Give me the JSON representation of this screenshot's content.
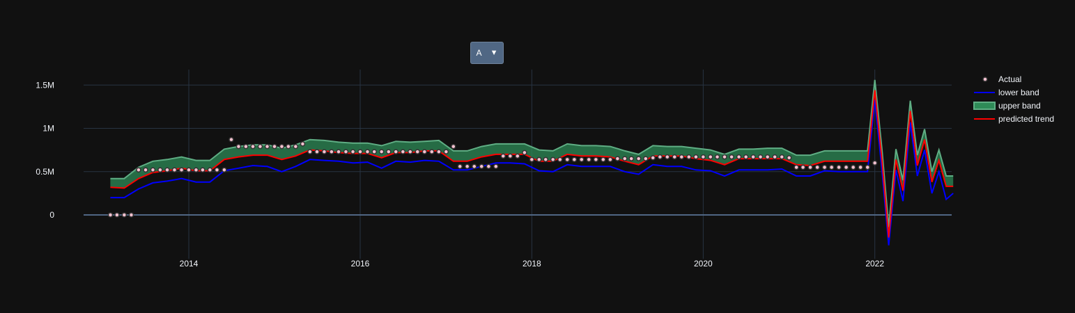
{
  "dropdown": {
    "selected": "A",
    "arrow": "▼"
  },
  "colors": {
    "background": "#111111",
    "grid": "#283442",
    "zeroline": "#506784",
    "lower": "#0000ff",
    "upper_line": "#5fae84",
    "upper_fill": "#2e8b57",
    "trend": "#ff0000",
    "actual_fill": "#f4c2d0",
    "actual_edge": "#333333"
  },
  "chart_data": {
    "type": "line",
    "y_ticks": [
      "0",
      "0.5M",
      "1M",
      "1.5M"
    ],
    "y_tick_values": [
      0,
      500000,
      1000000,
      1500000
    ],
    "x_ticks": [
      "2014",
      "2016",
      "2018",
      "2020",
      "2022"
    ],
    "x_tick_values": [
      "2014-01-01",
      "2016-01-01",
      "2018-01-01",
      "2020-01-01",
      "2022-01-01"
    ],
    "xlim": [
      "2012-06-28",
      "2022-12-01"
    ],
    "ylim": [
      -450000,
      1700000
    ],
    "grid": true,
    "legend_position": "top-right",
    "legend": [
      {
        "name": "Actual",
        "kind": "marker"
      },
      {
        "name": "lower band",
        "kind": "line",
        "color": "#0000ff"
      },
      {
        "name": "upper band",
        "kind": "fill",
        "color": "#2e8b57"
      },
      {
        "name": "predicted trend",
        "kind": "line",
        "color": "#ff0000"
      }
    ],
    "actual": {
      "x": [
        "2013-02",
        "2013-03",
        "2013-04",
        "2013-05",
        "2013-06",
        "2013-07",
        "2013-08",
        "2013-09",
        "2013-10",
        "2013-11",
        "2013-12",
        "2014-01",
        "2014-02",
        "2014-03",
        "2014-04",
        "2014-05",
        "2014-06",
        "2014-07",
        "2014-08",
        "2014-09",
        "2014-10",
        "2014-11",
        "2014-12",
        "2015-01",
        "2015-02",
        "2015-03",
        "2015-04",
        "2015-05",
        "2015-06",
        "2015-07",
        "2015-08",
        "2015-09",
        "2015-10",
        "2015-11",
        "2015-12",
        "2016-01",
        "2016-02",
        "2016-03",
        "2016-04",
        "2016-05",
        "2016-06",
        "2016-07",
        "2016-08",
        "2016-09",
        "2016-10",
        "2016-11",
        "2016-12",
        "2017-01",
        "2017-02",
        "2017-03",
        "2017-04",
        "2017-05",
        "2017-06",
        "2017-07",
        "2017-08",
        "2017-09",
        "2017-10",
        "2017-11",
        "2017-12",
        "2018-01",
        "2018-02",
        "2018-03",
        "2018-04",
        "2018-05",
        "2018-06",
        "2018-07",
        "2018-08",
        "2018-09",
        "2018-10",
        "2018-11",
        "2018-12",
        "2019-01",
        "2019-02",
        "2019-03",
        "2019-04",
        "2019-05",
        "2019-06",
        "2019-07",
        "2019-08",
        "2019-09",
        "2019-10",
        "2019-11",
        "2019-12",
        "2020-01",
        "2020-02",
        "2020-03",
        "2020-04",
        "2020-05",
        "2020-06",
        "2020-07",
        "2020-08",
        "2020-09",
        "2020-10",
        "2020-11",
        "2020-12",
        "2021-01",
        "2021-02",
        "2021-03",
        "2021-04",
        "2021-05",
        "2021-06",
        "2021-07",
        "2021-08",
        "2021-09",
        "2021-10",
        "2021-11",
        "2021-12",
        "2022-01"
      ],
      "y": [
        0,
        0,
        0,
        0,
        520000,
        520000,
        520000,
        520000,
        520000,
        520000,
        520000,
        520000,
        520000,
        520000,
        520000,
        520000,
        520000,
        870000,
        790000,
        790000,
        790000,
        790000,
        790000,
        790000,
        790000,
        790000,
        790000,
        820000,
        730000,
        730000,
        730000,
        730000,
        730000,
        730000,
        730000,
        730000,
        730000,
        730000,
        730000,
        730000,
        730000,
        730000,
        730000,
        730000,
        730000,
        730000,
        730000,
        730000,
        790000,
        560000,
        560000,
        560000,
        560000,
        560000,
        560000,
        680000,
        680000,
        680000,
        720000,
        640000,
        640000,
        640000,
        640000,
        640000,
        640000,
        640000,
        640000,
        640000,
        640000,
        640000,
        640000,
        650000,
        650000,
        650000,
        650000,
        650000,
        660000,
        670000,
        670000,
        670000,
        670000,
        670000,
        670000,
        670000,
        670000,
        670000,
        670000,
        670000,
        670000,
        670000,
        670000,
        670000,
        670000,
        670000,
        670000,
        660000,
        550000,
        550000,
        550000,
        550000,
        550000,
        550000,
        550000,
        550000,
        550000,
        550000,
        550000,
        600000
      ]
    },
    "bands": {
      "x": [
        "2013-02",
        "2013-04",
        "2013-06",
        "2013-08",
        "2013-10",
        "2013-12",
        "2014-02",
        "2014-04",
        "2014-06",
        "2014-08",
        "2014-10",
        "2014-12",
        "2015-02",
        "2015-04",
        "2015-06",
        "2015-08",
        "2015-10",
        "2015-12",
        "2016-02",
        "2016-04",
        "2016-06",
        "2016-08",
        "2016-10",
        "2016-12",
        "2017-02",
        "2017-04",
        "2017-06",
        "2017-08",
        "2017-10",
        "2017-12",
        "2018-02",
        "2018-04",
        "2018-06",
        "2018-08",
        "2018-10",
        "2018-12",
        "2019-02",
        "2019-04",
        "2019-06",
        "2019-08",
        "2019-10",
        "2019-12",
        "2020-02",
        "2020-04",
        "2020-06",
        "2020-08",
        "2020-10",
        "2020-12",
        "2021-02",
        "2021-04",
        "2021-06",
        "2021-08",
        "2021-10",
        "2021-12",
        "2022-01",
        "2022-02",
        "2022-03",
        "2022-04",
        "2022-05",
        "2022-06",
        "2022-07",
        "2022-08",
        "2022-09",
        "2022-10",
        "2022-11",
        "2022-12"
      ],
      "lower": [
        200000,
        200000,
        300000,
        370000,
        390000,
        420000,
        380000,
        380000,
        510000,
        540000,
        570000,
        560000,
        500000,
        560000,
        640000,
        630000,
        620000,
        600000,
        610000,
        540000,
        620000,
        610000,
        630000,
        620000,
        520000,
        520000,
        560000,
        600000,
        600000,
        590000,
        510000,
        500000,
        580000,
        560000,
        560000,
        560000,
        500000,
        470000,
        580000,
        560000,
        560000,
        520000,
        510000,
        450000,
        520000,
        520000,
        520000,
        530000,
        450000,
        450000,
        510000,
        500000,
        500000,
        500000,
        1330000,
        500000,
        -350000,
        520000,
        160000,
        1070000,
        450000,
        750000,
        250000,
        500000,
        180000,
        250000
      ],
      "trend": [
        320000,
        310000,
        420000,
        490000,
        510000,
        540000,
        510000,
        510000,
        640000,
        670000,
        690000,
        690000,
        640000,
        680000,
        750000,
        740000,
        720000,
        710000,
        710000,
        660000,
        720000,
        720000,
        740000,
        740000,
        620000,
        620000,
        670000,
        700000,
        700000,
        700000,
        620000,
        620000,
        700000,
        680000,
        680000,
        670000,
        620000,
        580000,
        680000,
        680000,
        680000,
        650000,
        630000,
        580000,
        650000,
        650000,
        650000,
        650000,
        580000,
        570000,
        620000,
        620000,
        620000,
        620000,
        1440000,
        620000,
        -260000,
        640000,
        280000,
        1200000,
        570000,
        870000,
        380000,
        630000,
        330000,
        330000
      ],
      "upper": [
        420000,
        420000,
        550000,
        620000,
        640000,
        670000,
        630000,
        630000,
        760000,
        790000,
        810000,
        810000,
        770000,
        810000,
        870000,
        860000,
        840000,
        830000,
        830000,
        800000,
        850000,
        840000,
        850000,
        860000,
        740000,
        740000,
        790000,
        820000,
        820000,
        820000,
        750000,
        740000,
        820000,
        800000,
        800000,
        790000,
        740000,
        700000,
        800000,
        790000,
        790000,
        770000,
        750000,
        700000,
        760000,
        760000,
        770000,
        770000,
        690000,
        690000,
        740000,
        740000,
        740000,
        740000,
        1560000,
        740000,
        -140000,
        760000,
        400000,
        1320000,
        690000,
        990000,
        500000,
        750000,
        450000,
        450000
      ]
    }
  }
}
